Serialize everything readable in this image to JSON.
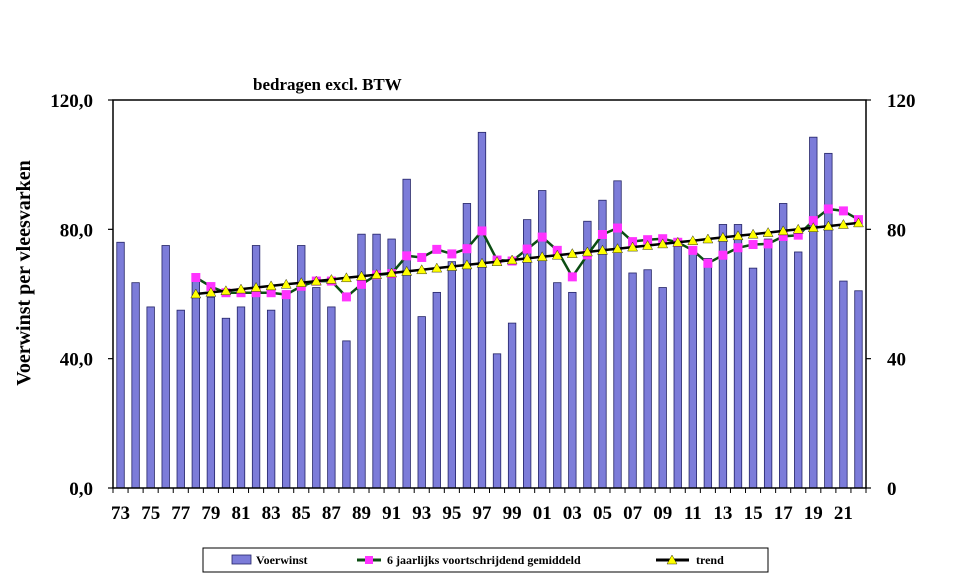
{
  "chart_data": {
    "type": "bar",
    "title": "bedragen excl. BTW",
    "ylabel": "Voerwinst per vleesvarken",
    "x": [
      1973,
      1974,
      1975,
      1976,
      1977,
      1978,
      1979,
      1980,
      1981,
      1982,
      1983,
      1984,
      1985,
      1986,
      1987,
      1988,
      1989,
      1990,
      1991,
      1992,
      1993,
      1994,
      1995,
      1996,
      1997,
      1998,
      1999,
      2000,
      2001,
      2002,
      2003,
      2004,
      2005,
      2006,
      2007,
      2008,
      2009,
      2010,
      2011,
      2012,
      2013,
      2014,
      2015,
      2016,
      2017,
      2018,
      2019,
      2020,
      2021,
      2022
    ],
    "x_tick_labels": [
      "73",
      "75",
      "77",
      "79",
      "81",
      "83",
      "85",
      "87",
      "89",
      "91",
      "93",
      "95",
      "97",
      "99",
      "01",
      "03",
      "05",
      "07",
      "09",
      "11",
      "13",
      "15",
      "17",
      "19",
      "21"
    ],
    "ylim": [
      0,
      120
    ],
    "y_ticks": [
      0,
      40,
      80,
      120
    ],
    "y_tick_labels_left": [
      "0,0",
      "40,0",
      "80,0",
      "120,0"
    ],
    "y_tick_labels_right": [
      "0",
      "40",
      "80",
      "120"
    ],
    "secondary_y_axis": true,
    "grid": false,
    "legend": "bottom",
    "series": [
      {
        "name": "Voerwinst",
        "type": "bar",
        "values": [
          76,
          63.5,
          56,
          75,
          55,
          65,
          59,
          52.5,
          56,
          75,
          55,
          61,
          75,
          62,
          56,
          45.5,
          78.5,
          78.5,
          77,
          95.5,
          53,
          60.5,
          70,
          88,
          110,
          41.5,
          51,
          83,
          92,
          63.5,
          60.5,
          82.5,
          89,
          95,
          66.5,
          67.5,
          62,
          76,
          74,
          71,
          81.5,
          81.5,
          68,
          77,
          88,
          73,
          108.5,
          103.5,
          64,
          61
        ]
      },
      {
        "name": "6 jaarlijks voortschrijdend gemiddeld",
        "type": "line",
        "marker": "square",
        "values": [
          null,
          null,
          null,
          null,
          null,
          65.1,
          62.3,
          60.4,
          60.4,
          60.4,
          60.4,
          59.8,
          62.4,
          64.0,
          64.0,
          59.1,
          63.0,
          65.9,
          66.3,
          71.8,
          71.3,
          73.8,
          72.4,
          74.0,
          79.5,
          70.5,
          70.2,
          73.9,
          77.6,
          73.5,
          65.3,
          72.1,
          78.4,
          80.4,
          76.2,
          76.8,
          77.1,
          76.0,
          73.5,
          69.5,
          72.0,
          74.3,
          75.3,
          75.5,
          77.8,
          78.2,
          82.7,
          86.3,
          85.7,
          83.0
        ]
      },
      {
        "name": "trend",
        "type": "line",
        "marker": "triangle",
        "values": [
          null,
          null,
          null,
          null,
          null,
          60.0,
          60.5,
          61.0,
          61.5,
          62.0,
          62.5,
          63.0,
          63.5,
          64.0,
          64.5,
          65.0,
          65.5,
          66.0,
          66.5,
          67.0,
          67.5,
          68.0,
          68.5,
          69.0,
          69.5,
          70.0,
          70.5,
          71.0,
          71.5,
          72.0,
          72.5,
          73.0,
          73.5,
          74.0,
          74.5,
          75.0,
          75.5,
          76.0,
          76.5,
          77.0,
          77.5,
          78.0,
          78.5,
          79.0,
          79.5,
          80.0,
          80.5,
          81.0,
          81.5,
          82.0
        ]
      }
    ],
    "colors": {
      "bar_fill": "#7C7CD9",
      "bar_stroke": "#232366",
      "moving_avg_line": "#0B4D12",
      "moving_avg_marker": "#FF33FF",
      "trend_line": "#000000",
      "trend_marker": "#FFFF00"
    }
  }
}
